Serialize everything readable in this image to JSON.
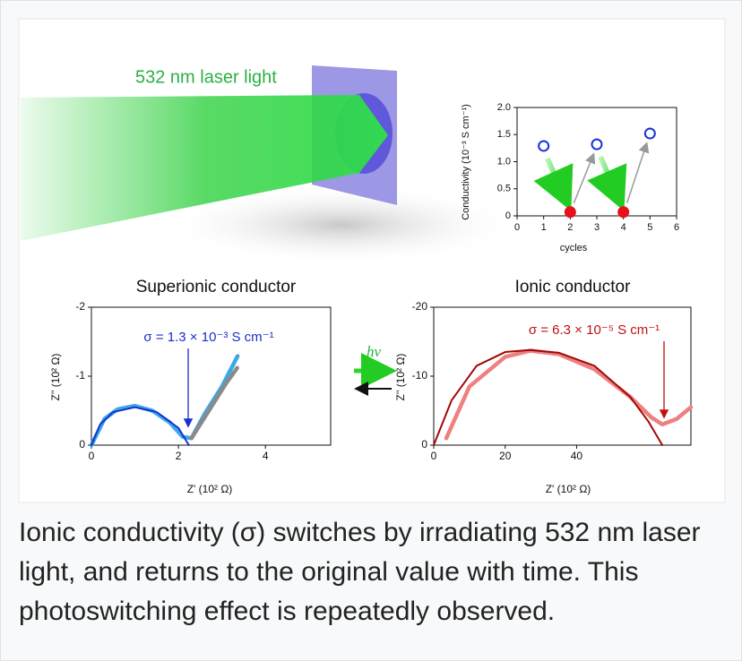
{
  "illustration_label": "532 nm laser light",
  "hv_label": "hv",
  "caption": "Ionic conductivity (σ) switches by irradiating 532 nm laser light, and returns to the original value with time. This photoswitching effect is repeatedly observed.",
  "chart_data": [
    {
      "type": "scatter",
      "xlabel": "cycles",
      "ylabel": "Conductivity (10⁻³ S cm⁻¹)",
      "xlim": [
        0,
        6
      ],
      "xticks": [
        0,
        1,
        2,
        3,
        4,
        5,
        6
      ],
      "ylim": [
        0,
        2
      ],
      "yticks": [
        0,
        0.5,
        {
          "value": 1,
          "label": "1.0"
        },
        1.5,
        {
          "value": 2,
          "label": "2.0"
        }
      ],
      "series": [
        {
          "color": "#1533d6",
          "marker": "open",
          "x": [
            1,
            3,
            5
          ],
          "values": [
            1.29,
            1.32,
            1.52
          ]
        },
        {
          "color": "#e8101a",
          "marker": "filled",
          "x": [
            2,
            4
          ],
          "values": [
            0.07,
            0.07
          ]
        }
      ]
    },
    {
      "type": "line",
      "title": "Superionic conductor",
      "xlabel": "Z' (10² Ω)",
      "ylabel": "Z'' (10² Ω)",
      "annotation": "σ = 1.3 × 10⁻³ S cm⁻¹",
      "annotation_color": "#1a2fd0",
      "xlim": [
        0,
        5.5
      ],
      "xticks": [
        0,
        2,
        4
      ],
      "ylim": [
        0,
        -2
      ],
      "yticks": [
        0,
        -1,
        -2
      ],
      "series": [
        {
          "color": "#3aa8e8",
          "x": [
            0,
            0.3,
            0.6,
            1.0,
            1.4,
            1.8,
            2.1,
            2.3,
            2.6,
            3.0,
            3.36
          ],
          "values": [
            0,
            -0.38,
            -0.52,
            -0.57,
            -0.5,
            -0.33,
            -0.12,
            -0.1,
            -0.45,
            -0.85,
            -1.29
          ]
        },
        {
          "color": "#8a8a8a",
          "x": [
            2.3,
            2.7,
            3.1,
            3.35
          ],
          "values": [
            -0.1,
            -0.5,
            -0.9,
            -1.12
          ]
        },
        {
          "color": "#1a2fd0",
          "x": [
            0,
            0.2,
            0.5,
            1.0,
            1.5,
            2.0,
            2.24
          ],
          "values": [
            0,
            -0.3,
            -0.48,
            -0.55,
            -0.48,
            -0.25,
            0
          ]
        }
      ]
    },
    {
      "type": "line",
      "title": "Ionic conductor",
      "xlabel": "Z' (10² Ω)",
      "ylabel": "Z'' (10² Ω)",
      "annotation": "σ = 6.3 × 10⁻⁵ S cm⁻¹",
      "annotation_color": "#c01010",
      "xlim": [
        0,
        72
      ],
      "xticks": [
        0,
        20,
        40
      ],
      "ylim": [
        0,
        -20
      ],
      "yticks": [
        0,
        -10,
        -20
      ],
      "series": [
        {
          "color": "#ef8080",
          "x": [
            3.5,
            10,
            20,
            27,
            35,
            45,
            55,
            61,
            64,
            68,
            72
          ],
          "values": [
            -1,
            -8.5,
            -12.8,
            -13.7,
            -13.2,
            -11,
            -7,
            -4,
            -3,
            -3.8,
            -5.5
          ]
        },
        {
          "color": "#a00808",
          "x": [
            0,
            5,
            12,
            20,
            27,
            35,
            45,
            55,
            60,
            64
          ],
          "values": [
            0,
            -6.5,
            -11.5,
            -13.5,
            -13.8,
            -13.4,
            -11.5,
            -7,
            -3.5,
            0
          ]
        }
      ]
    }
  ]
}
